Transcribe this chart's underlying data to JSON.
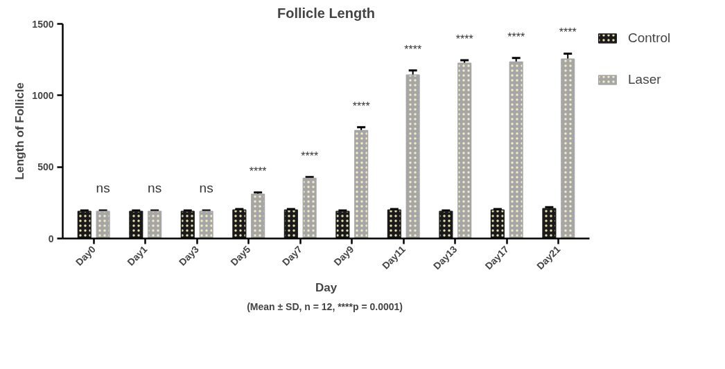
{
  "chart_data": {
    "type": "bar",
    "title": "Follicle Length",
    "xlabel": "Day",
    "ylabel": "Length of Follicle",
    "categories": [
      "Day0",
      "Day1",
      "Day3",
      "Day5",
      "Day7",
      "Day9",
      "Day11",
      "Day13",
      "Day17",
      "Day21"
    ],
    "series": [
      {
        "name": "Control",
        "color": "#1a1a1a",
        "values": [
          190,
          190,
          190,
          200,
          200,
          190,
          200,
          190,
          200,
          209
        ],
        "errors": [
          6,
          6,
          6,
          6,
          6,
          6,
          6,
          6,
          6,
          10
        ]
      },
      {
        "name": "Laser",
        "color": "#a6a6a6",
        "values": [
          190,
          190,
          190,
          310,
          421,
          755,
          1143,
          1226,
          1234,
          1254
        ],
        "errors": [
          6,
          6,
          6,
          12,
          8,
          23,
          31,
          20,
          28,
          38
        ]
      }
    ],
    "ylim": [
      0,
      1500
    ],
    "yticks": [
      0,
      500,
      1000,
      1500
    ],
    "grid": false,
    "legend": "right",
    "annotations": [
      "ns",
      "ns",
      "ns",
      "****",
      "****",
      "****",
      "****",
      "****",
      "****",
      "****",
      "(Mean ± SD, n = 12,  ****p = 0.0001)"
    ]
  }
}
